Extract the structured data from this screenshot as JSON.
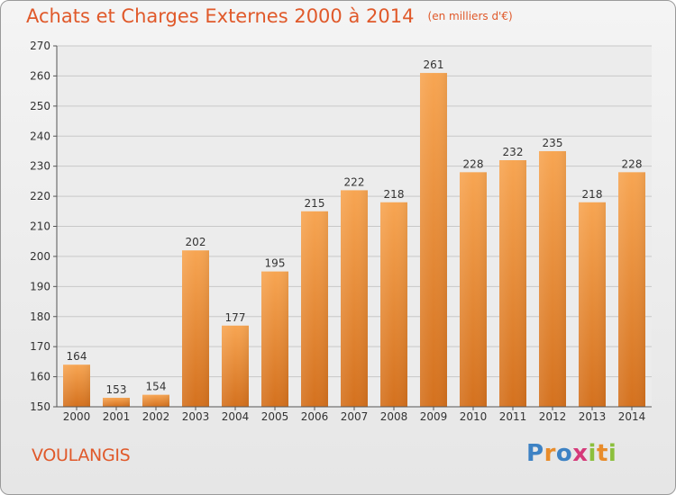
{
  "header": {
    "title": "Achats et Charges Externes 2000 à 2014",
    "subtitle": "(en milliers d'€)"
  },
  "commune": "VOULANGIS",
  "logo": {
    "text": "Proxiti",
    "colors": [
      "#3d82c4",
      "#e88c2a",
      "#d53a7a",
      "#8cbf3c"
    ]
  },
  "chart_data": {
    "type": "bar",
    "title": "Achats et Charges Externes 2000 à 2014",
    "subtitle": "(en milliers d'€)",
    "xlabel": "",
    "ylabel": "",
    "categories": [
      "2000",
      "2001",
      "2002",
      "2003",
      "2004",
      "2005",
      "2006",
      "2007",
      "2008",
      "2009",
      "2010",
      "2011",
      "2012",
      "2013",
      "2014"
    ],
    "values": [
      164,
      153,
      154,
      202,
      177,
      195,
      215,
      222,
      218,
      261,
      228,
      232,
      235,
      218,
      228
    ],
    "ylim": [
      150,
      270
    ],
    "yticks": [
      150,
      160,
      170,
      180,
      190,
      200,
      210,
      220,
      230,
      240,
      250,
      260,
      270
    ],
    "grid": true,
    "legend": "none",
    "bar_color_top": "#f7a552",
    "bar_color_bottom": "#d4711e",
    "grid_color": "#c8c8c8"
  }
}
